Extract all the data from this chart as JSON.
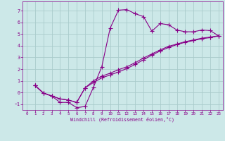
{
  "xlabel": "Windchill (Refroidissement éolien,°C)",
  "background_color": "#cce8e8",
  "grid_color": "#aacccc",
  "line_color": "#880088",
  "xlim": [
    -0.5,
    23.5
  ],
  "ylim": [
    -1.5,
    7.8
  ],
  "xticks": [
    0,
    1,
    2,
    3,
    4,
    5,
    6,
    7,
    8,
    9,
    10,
    11,
    12,
    13,
    14,
    15,
    16,
    17,
    18,
    19,
    20,
    21,
    22,
    23
  ],
  "yticks": [
    -1,
    0,
    1,
    2,
    3,
    4,
    5,
    6,
    7
  ],
  "series1_x": [
    1,
    2,
    3,
    4,
    5,
    6,
    7,
    8,
    9,
    10,
    11,
    12,
    13,
    14,
    15,
    16,
    17,
    18,
    19,
    20,
    21,
    22,
    23
  ],
  "series1_y": [
    0.6,
    -0.05,
    -0.3,
    -0.85,
    -0.85,
    -1.3,
    -1.2,
    0.45,
    2.2,
    5.5,
    7.05,
    7.1,
    6.75,
    6.5,
    5.25,
    5.9,
    5.8,
    5.35,
    5.2,
    5.2,
    5.35,
    5.3,
    4.85
  ],
  "series2_x": [
    1,
    2,
    3,
    4,
    5,
    6,
    7,
    8,
    9,
    10,
    11,
    12,
    13,
    14,
    15,
    16,
    17,
    18,
    19,
    20,
    21,
    22,
    23
  ],
  "series2_y": [
    0.6,
    -0.05,
    -0.3,
    -0.55,
    -0.65,
    -0.85,
    0.4,
    1.0,
    1.4,
    1.65,
    1.95,
    2.2,
    2.55,
    2.95,
    3.3,
    3.65,
    3.95,
    4.15,
    4.35,
    4.5,
    4.65,
    4.75,
    4.85
  ],
  "series3_x": [
    1,
    2,
    3,
    4,
    5,
    6,
    7,
    8,
    9,
    10,
    11,
    12,
    13,
    14,
    15,
    16,
    17,
    18,
    19,
    20,
    21,
    22,
    23
  ],
  "series3_y": [
    0.6,
    -0.05,
    -0.3,
    -0.55,
    -0.65,
    -0.85,
    0.4,
    0.85,
    1.25,
    1.5,
    1.75,
    2.05,
    2.4,
    2.8,
    3.2,
    3.55,
    3.85,
    4.1,
    4.3,
    4.45,
    4.6,
    4.7,
    4.85
  ]
}
